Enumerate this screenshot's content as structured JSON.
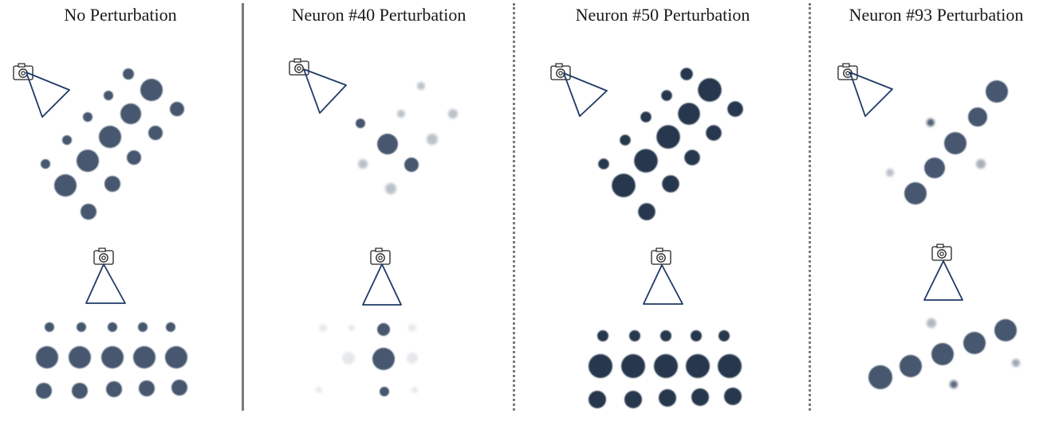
{
  "panels": [
    {
      "title": "No Perturbation",
      "variant": "full"
    },
    {
      "title": "Neuron #40 Perturbation",
      "variant": "sparse"
    },
    {
      "title": "Neuron #50 Perturbation",
      "variant": "dark"
    },
    {
      "title": "Neuron #93 Perturbation",
      "variant": "diagonal"
    }
  ],
  "colors": {
    "blob": "#3d5068",
    "blob_dark": "#1f2f44",
    "frustum": "#1f3a66",
    "divider": "#7a7a7a"
  },
  "icons": [
    "camera-icon",
    "camera-frustum"
  ]
}
